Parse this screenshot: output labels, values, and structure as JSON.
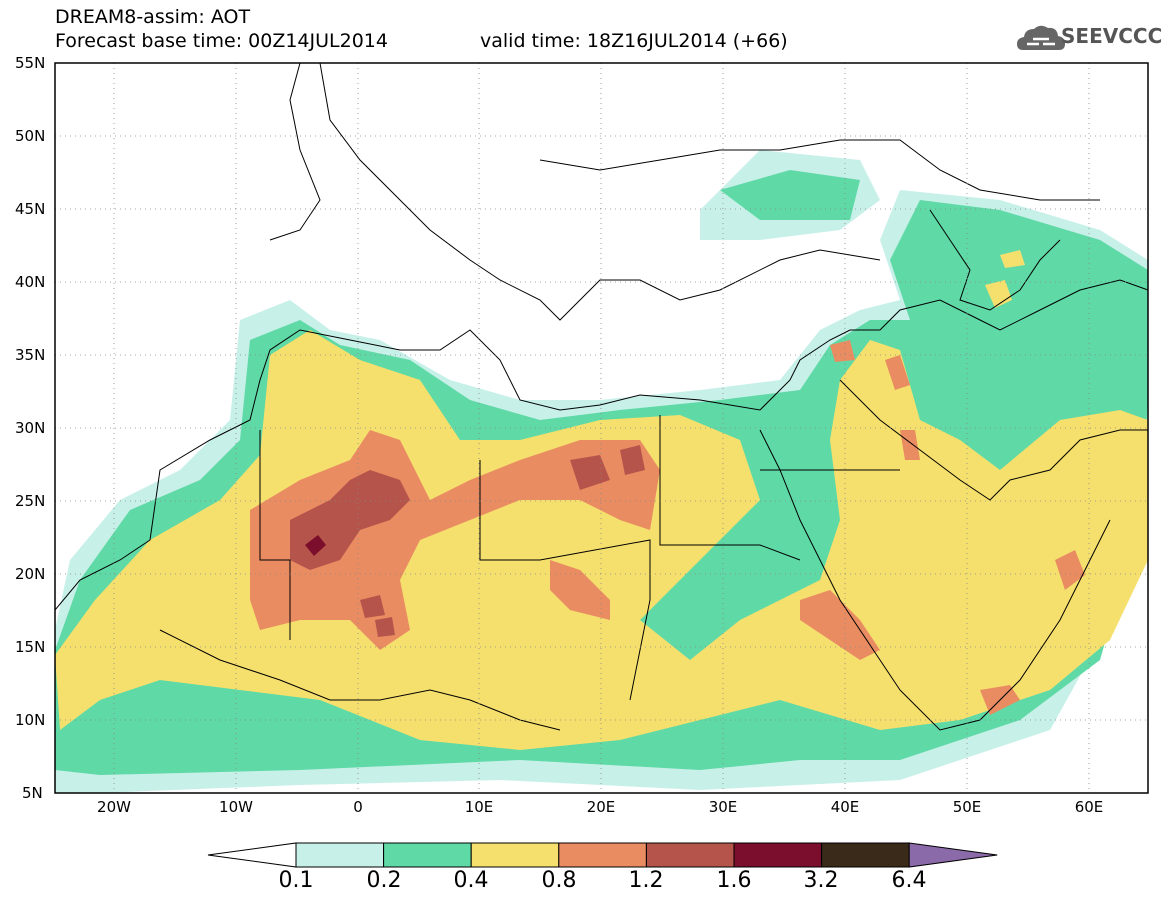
{
  "header": {
    "title": "DREAM8-assim: AOT",
    "base_time": "Forecast base time: 00Z14JUL2014",
    "valid_time": "valid time: 18Z16JUL2014 (+66)"
  },
  "logo": {
    "text": "SEEVCCC",
    "icon": "cloud-icon"
  },
  "map": {
    "lat_labels": [
      "55N",
      "50N",
      "45N",
      "40N",
      "35N",
      "30N",
      "25N",
      "20N",
      "15N",
      "10N",
      "5N"
    ],
    "lon_labels": [
      "20W",
      "10W",
      "0",
      "10E",
      "20E",
      "30E",
      "40E",
      "50E",
      "60E"
    ],
    "variable": "AOT"
  },
  "colorbar": {
    "levels": [
      "0.1",
      "0.2",
      "0.4",
      "0.8",
      "1.2",
      "1.6",
      "3.2",
      "6.4"
    ],
    "colors": [
      "#ffffff",
      "#c7f0e9",
      "#5fd9a6",
      "#f5e06e",
      "#e98c62",
      "#b5544a",
      "#7a0e2c",
      "#3a2a1a",
      "#8a6aa8"
    ]
  }
}
